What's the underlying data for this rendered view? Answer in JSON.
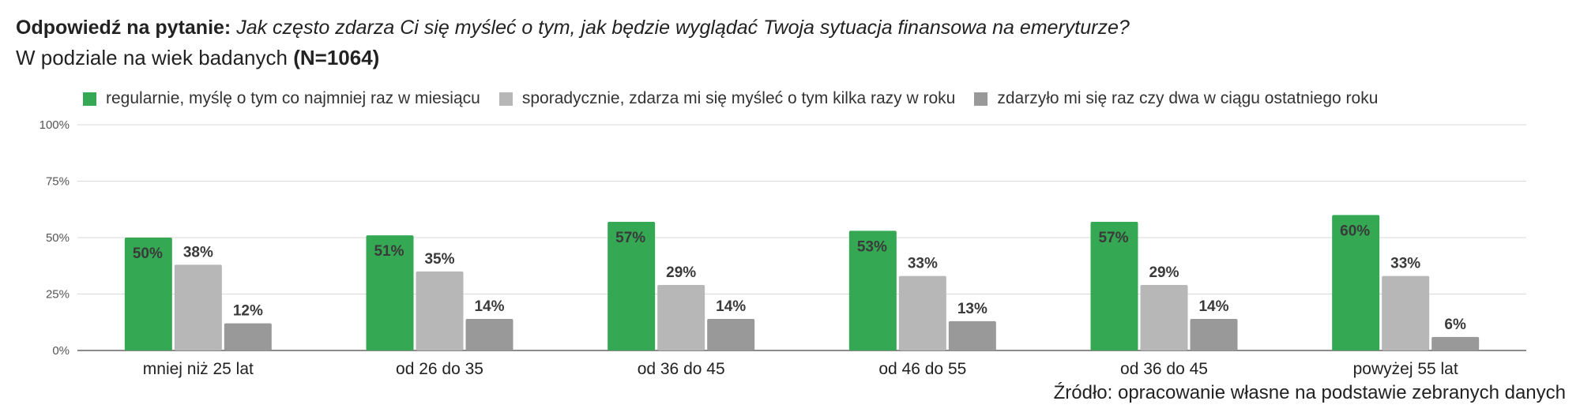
{
  "header": {
    "title_bold": "Odpowiedź na pytanie:",
    "title_question": "Jak często zdarza Ci się myśleć o tym, jak będzie wyglądać Twoja sytuacja finansowa na emeryturze?",
    "subtitle_text": "W podziale na wiek badanych",
    "subtitle_bold": "(N=1064)"
  },
  "source_text": "Źródło: opracowanie własne na podstawie zebranych danych",
  "colors": {
    "green": "#34a853",
    "light_gray": "#b7b7b7",
    "dark_gray": "#999999",
    "grid": "#d9d9d9",
    "axis": "#666666"
  },
  "chart_data": {
    "type": "bar",
    "categories": [
      "mniej niż 25 lat",
      "od 26 do 35",
      "od 36 do 45",
      "od 46 do 55",
      "od 36 do 45",
      "powyżej 55 lat"
    ],
    "series": [
      {
        "name": "regularnie, myślę o tym co najmniej raz w miesiącu",
        "color": "#34a853",
        "values": [
          50,
          51,
          57,
          53,
          57,
          60
        ],
        "labels": [
          "50%",
          "51%",
          "57%",
          "53%",
          "57%",
          "60%"
        ]
      },
      {
        "name": "sporadycznie, zdarza mi się myśleć o tym kilka razy w roku",
        "color": "#b7b7b7",
        "values": [
          38,
          35,
          29,
          33,
          29,
          33
        ],
        "labels": [
          "38%",
          "35%",
          "29%",
          "33%",
          "29%",
          "33%"
        ]
      },
      {
        "name": "zdarzyło mi się raz czy dwa w ciągu ostatniego roku",
        "color": "#999999",
        "values": [
          12,
          14,
          14,
          13,
          14,
          6
        ],
        "labels": [
          "12%",
          "14%",
          "14%",
          "13%",
          "14%",
          "6%"
        ]
      }
    ],
    "y_ticks": [
      "0%",
      "25%",
      "50%",
      "75%",
      "100%"
    ],
    "ylim": [
      0,
      100
    ],
    "grid": true,
    "legend": "top"
  }
}
